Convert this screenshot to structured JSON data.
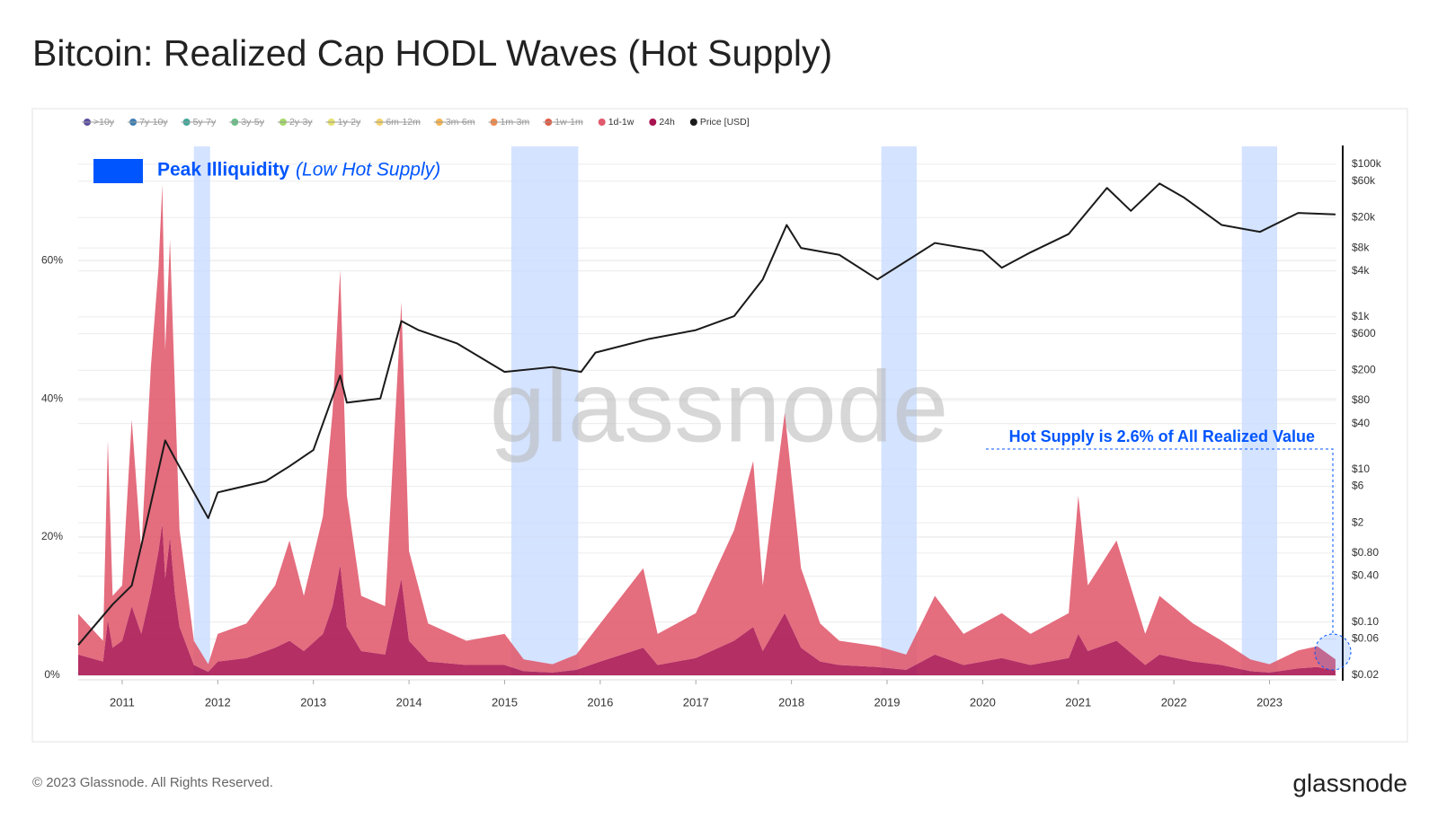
{
  "chart_data": {
    "type": "stacked_area",
    "title": "Bitcoin: Realized Cap HODL Waves (Hot Supply)",
    "footer": "© 2023 Glassnode. All Rights Reserved.",
    "logo": "glassnode",
    "watermark": "glassnode",
    "highlight_key": {
      "label": "Peak Illiquidity",
      "note": "(Low Hot Supply)",
      "color": "#0055ff"
    },
    "highlight_ranges": [
      [
        2011.75,
        2011.92
      ],
      [
        2015.07,
        2015.77
      ],
      [
        2018.94,
        2019.31
      ],
      [
        2022.71,
        2023.08
      ]
    ],
    "annotation": "Hot Supply is 2.6% of All Realized Value",
    "hidden_series": [
      {
        "name": ">10y",
        "color": "#5e4fa2"
      },
      {
        "name": "7y-10y",
        "color": "#3f7fb4"
      },
      {
        "name": "5y-7y",
        "color": "#44a89b"
      },
      {
        "name": "3y-5y",
        "color": "#6cc08a"
      },
      {
        "name": "2y-3y",
        "color": "#a5d96a"
      },
      {
        "name": "1y-2y",
        "color": "#e6e26e"
      },
      {
        "name": "6m-12m",
        "color": "#f5d36e"
      },
      {
        "name": "3m-6m",
        "color": "#f8b552"
      },
      {
        "name": "1m-3m",
        "color": "#f08a4b"
      },
      {
        "name": "1w-1m",
        "color": "#e25b45"
      }
    ],
    "x": [
      2010.54,
      2010.8,
      2010.85,
      2010.9,
      2011.0,
      2011.1,
      2011.2,
      2011.3,
      2011.38,
      2011.42,
      2011.45,
      2011.5,
      2011.55,
      2011.6,
      2011.75,
      2011.9,
      2012.0,
      2012.3,
      2012.6,
      2012.75,
      2012.9,
      2013.1,
      2013.2,
      2013.28,
      2013.35,
      2013.5,
      2013.75,
      2013.92,
      2014.0,
      2014.2,
      2014.6,
      2015.0,
      2015.2,
      2015.5,
      2015.75,
      2016.0,
      2016.45,
      2016.6,
      2017.0,
      2017.4,
      2017.6,
      2017.7,
      2017.93,
      2018.1,
      2018.3,
      2018.5,
      2018.9,
      2019.2,
      2019.5,
      2019.8,
      2020.2,
      2020.5,
      2020.9,
      2021.0,
      2021.1,
      2021.4,
      2021.7,
      2021.85,
      2022.2,
      2022.5,
      2022.8,
      2023.0,
      2023.3,
      2023.5,
      2023.69
    ],
    "series": [
      {
        "name": "1d-1w",
        "color": "#e0596c",
        "values": [
          5.9,
          3.0,
          26,
          7.5,
          8,
          27,
          12,
          32.6,
          41,
          49,
          33,
          43,
          30,
          14,
          3.5,
          1.1,
          4,
          5,
          9,
          14.5,
          8,
          17,
          28,
          42.6,
          19,
          8,
          7,
          40,
          13,
          5.5,
          3.5,
          4.5,
          1.7,
          1.2,
          2.2,
          5.5,
          11.5,
          4.5,
          6.5,
          16,
          24,
          9.5,
          29,
          11.5,
          5.5,
          3.5,
          3,
          2.2,
          8.5,
          4.5,
          6.5,
          4.5,
          6.5,
          20,
          9.5,
          14.5,
          4.5,
          8.5,
          5.5,
          3.5,
          1.7,
          1.2,
          2.6,
          3,
          1.6
        ]
      },
      {
        "name": "24h",
        "color": "#a8124f",
        "values": [
          3.0,
          2.0,
          8,
          4,
          5,
          10,
          6,
          12,
          18,
          22,
          14,
          20,
          12,
          7,
          1.5,
          0.5,
          2,
          2.5,
          4,
          5,
          3.5,
          6,
          10,
          16,
          7,
          3.5,
          3,
          14,
          5,
          2,
          1.5,
          1.5,
          0.6,
          0.4,
          0.8,
          2,
          4,
          1.5,
          2.5,
          5,
          7,
          3.5,
          9,
          4,
          2,
          1.5,
          1.2,
          0.8,
          3,
          1.5,
          2.5,
          1.5,
          2.5,
          6,
          3.5,
          5,
          1.5,
          3,
          2,
          1.5,
          0.6,
          0.4,
          1,
          1.2,
          0.7
        ]
      },
      {
        "name": "Price [USD]",
        "color": "#1a1a1a",
        "axis": "y2",
        "x": [
          2010.54,
          2010.9,
          2011.1,
          2011.2,
          2011.45,
          2011.55,
          2011.9,
          2012.0,
          2012.5,
          2012.75,
          2013.0,
          2013.28,
          2013.35,
          2013.7,
          2013.92,
          2014.1,
          2014.5,
          2015.0,
          2015.5,
          2015.8,
          2015.95,
          2016.5,
          2017.0,
          2017.4,
          2017.7,
          2017.95,
          2018.1,
          2018.5,
          2018.9,
          2019.5,
          2020.0,
          2020.2,
          2020.5,
          2020.9,
          2021.3,
          2021.55,
          2021.85,
          2022.1,
          2022.5,
          2022.9,
          2023.3,
          2023.69
        ],
        "values": [
          0.05,
          0.17,
          0.3,
          1,
          24,
          14,
          2.3,
          5,
          7,
          11,
          18,
          170,
          75,
          85,
          880,
          670,
          450,
          190,
          220,
          190,
          340,
          510,
          670,
          1020,
          3100,
          16000,
          8000,
          6500,
          3100,
          9300,
          7300,
          4400,
          7000,
          12200,
          49000,
          24500,
          56000,
          37000,
          16000,
          13000,
          23000,
          22000
        ]
      }
    ],
    "xlim": [
      2010.54,
      2023.7
    ],
    "xticks": [
      2011,
      2012,
      2013,
      2014,
      2015,
      2016,
      2017,
      2018,
      2019,
      2020,
      2021,
      2022,
      2023
    ],
    "ylim": [
      0,
      76
    ],
    "yticks": [
      {
        "value": 0,
        "label": "0%"
      },
      {
        "value": 20,
        "label": "20%"
      },
      {
        "value": 40,
        "label": "40%"
      },
      {
        "value": 60,
        "label": "60%"
      }
    ],
    "y2lim": [
      0.02,
      154000
    ],
    "y2_log": true,
    "y2ticks": [
      {
        "value": 100000,
        "label": "$100k"
      },
      {
        "value": 60000,
        "label": "$60k"
      },
      {
        "value": 20000,
        "label": "$20k"
      },
      {
        "value": 8000,
        "label": "$8k"
      },
      {
        "value": 4000,
        "label": "$4k"
      },
      {
        "value": 1000,
        "label": "$1k"
      },
      {
        "value": 600,
        "label": "$600"
      },
      {
        "value": 200,
        "label": "$200"
      },
      {
        "value": 80,
        "label": "$80"
      },
      {
        "value": 40,
        "label": "$40"
      },
      {
        "value": 10,
        "label": "$10"
      },
      {
        "value": 6,
        "label": "$6"
      },
      {
        "value": 2,
        "label": "$2"
      },
      {
        "value": 0.8,
        "label": "$0.80"
      },
      {
        "value": 0.4,
        "label": "$0.40"
      },
      {
        "value": 0.1,
        "label": "$0.10"
      },
      {
        "value": 0.06,
        "label": "$0.06"
      },
      {
        "value": 0.02,
        "label": "$0.02"
      }
    ],
    "grid": true
  }
}
